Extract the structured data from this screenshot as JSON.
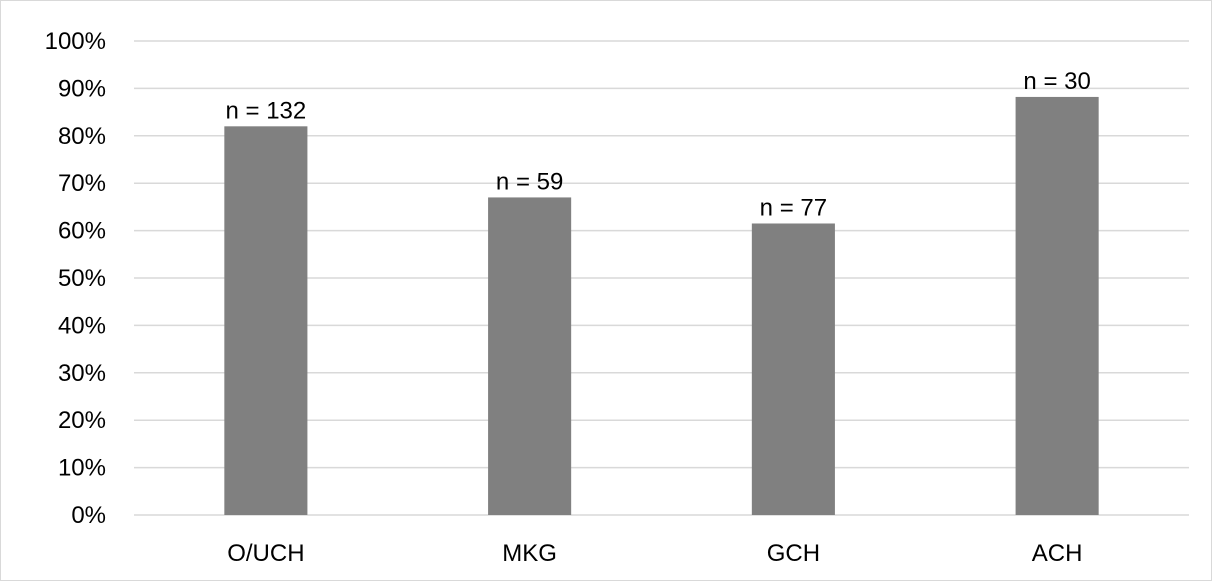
{
  "chart_data": {
    "type": "bar",
    "categories": [
      "O/UCH",
      "MKG",
      "GCH",
      "ACH"
    ],
    "values": [
      82,
      67,
      61.5,
      88.2
    ],
    "data_labels": [
      "n = 132",
      "n = 59",
      "n = 77",
      "n = 30"
    ],
    "title": "",
    "xlabel": "",
    "ylabel": "",
    "ylim": [
      0,
      100
    ],
    "y_ticks": [
      "0%",
      "10%",
      "20%",
      "30%",
      "40%",
      "50%",
      "60%",
      "70%",
      "80%",
      "90%",
      "100%"
    ],
    "grid": true,
    "legend": "none",
    "colors": {
      "bar": "#808080",
      "grid": "#d9d9d9",
      "text": "#000000",
      "border": "#d9d9d9"
    }
  }
}
